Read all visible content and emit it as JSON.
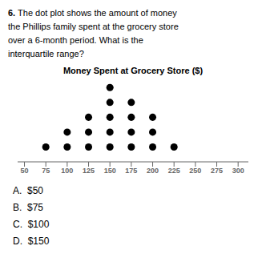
{
  "chart_data": {
    "type": "dot",
    "title": "Money Spent at Grocery Store ($)",
    "subtitle": [
      "6. The dot plot shows the amount of money",
      "the Phillips family spent at the grocery store",
      "over a 6-month period. What is the",
      "interquartile range?"
    ],
    "annotations": [
      "A.  $50",
      "B.  $75",
      "C.  $100",
      "D.  $150"
    ],
    "x": [
      75,
      100,
      125,
      150,
      175,
      200,
      225
    ],
    "values": [
      1,
      2,
      3,
      5,
      4,
      3,
      1
    ],
    "color": "#000000",
    "xlim": [
      42,
      312
    ],
    "xticks": [
      50,
      75,
      100,
      125,
      150,
      175,
      200,
      225,
      250,
      275,
      300
    ],
    "tick_labels": "x"
  }
}
